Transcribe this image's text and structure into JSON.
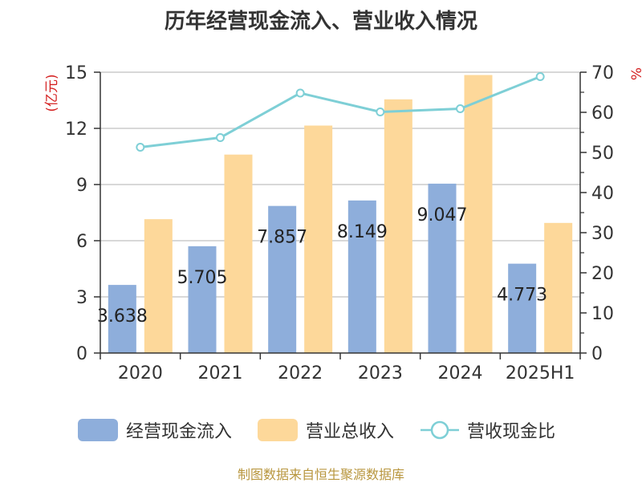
{
  "chart_data": {
    "type": "bar",
    "title": "历年经营现金流入、营业收入情况",
    "categories": [
      "2020",
      "2021",
      "2022",
      "2023",
      "2024",
      "2025H1"
    ],
    "series": [
      {
        "name": "经营现金流入",
        "kind": "bar",
        "axis": "left",
        "color": "#8eaedb",
        "values": [
          3.638,
          5.705,
          7.857,
          8.149,
          9.047,
          4.773
        ],
        "labels": [
          "3.638",
          "5.705",
          "7.857",
          "8.149",
          "9.047",
          "4.773"
        ]
      },
      {
        "name": "营业总收入",
        "kind": "bar",
        "axis": "left",
        "color": "#fdd89a",
        "values": [
          7.15,
          10.6,
          12.15,
          13.55,
          14.85,
          6.95
        ]
      },
      {
        "name": "营收现金比",
        "kind": "line",
        "axis": "right",
        "color": "#7ecfd6",
        "values": [
          51.3,
          53.7,
          64.8,
          60.1,
          60.9,
          68.9
        ]
      }
    ],
    "ylabel_left": "(亿元)",
    "ylabel_right": "%",
    "ylim_left": [
      0,
      15
    ],
    "ylim_right": [
      0,
      70
    ],
    "yticks_left": [
      0,
      3,
      6,
      9,
      12,
      15
    ],
    "yticks_right": [
      0,
      10,
      20,
      30,
      40,
      50,
      60,
      70
    ],
    "grid": true,
    "legend_position": "bottom"
  },
  "legend": {
    "items": [
      {
        "label": "经营现金流入",
        "color": "#8eaedb",
        "shape": "bar-swatch"
      },
      {
        "label": "营业总收入",
        "color": "#fdd89a",
        "shape": "bar-swatch"
      },
      {
        "label": "营收现金比",
        "color": "#7ecfd6",
        "shape": "line-marker"
      }
    ]
  },
  "footer": {
    "source": "制图数据来自恒生聚源数据库"
  }
}
